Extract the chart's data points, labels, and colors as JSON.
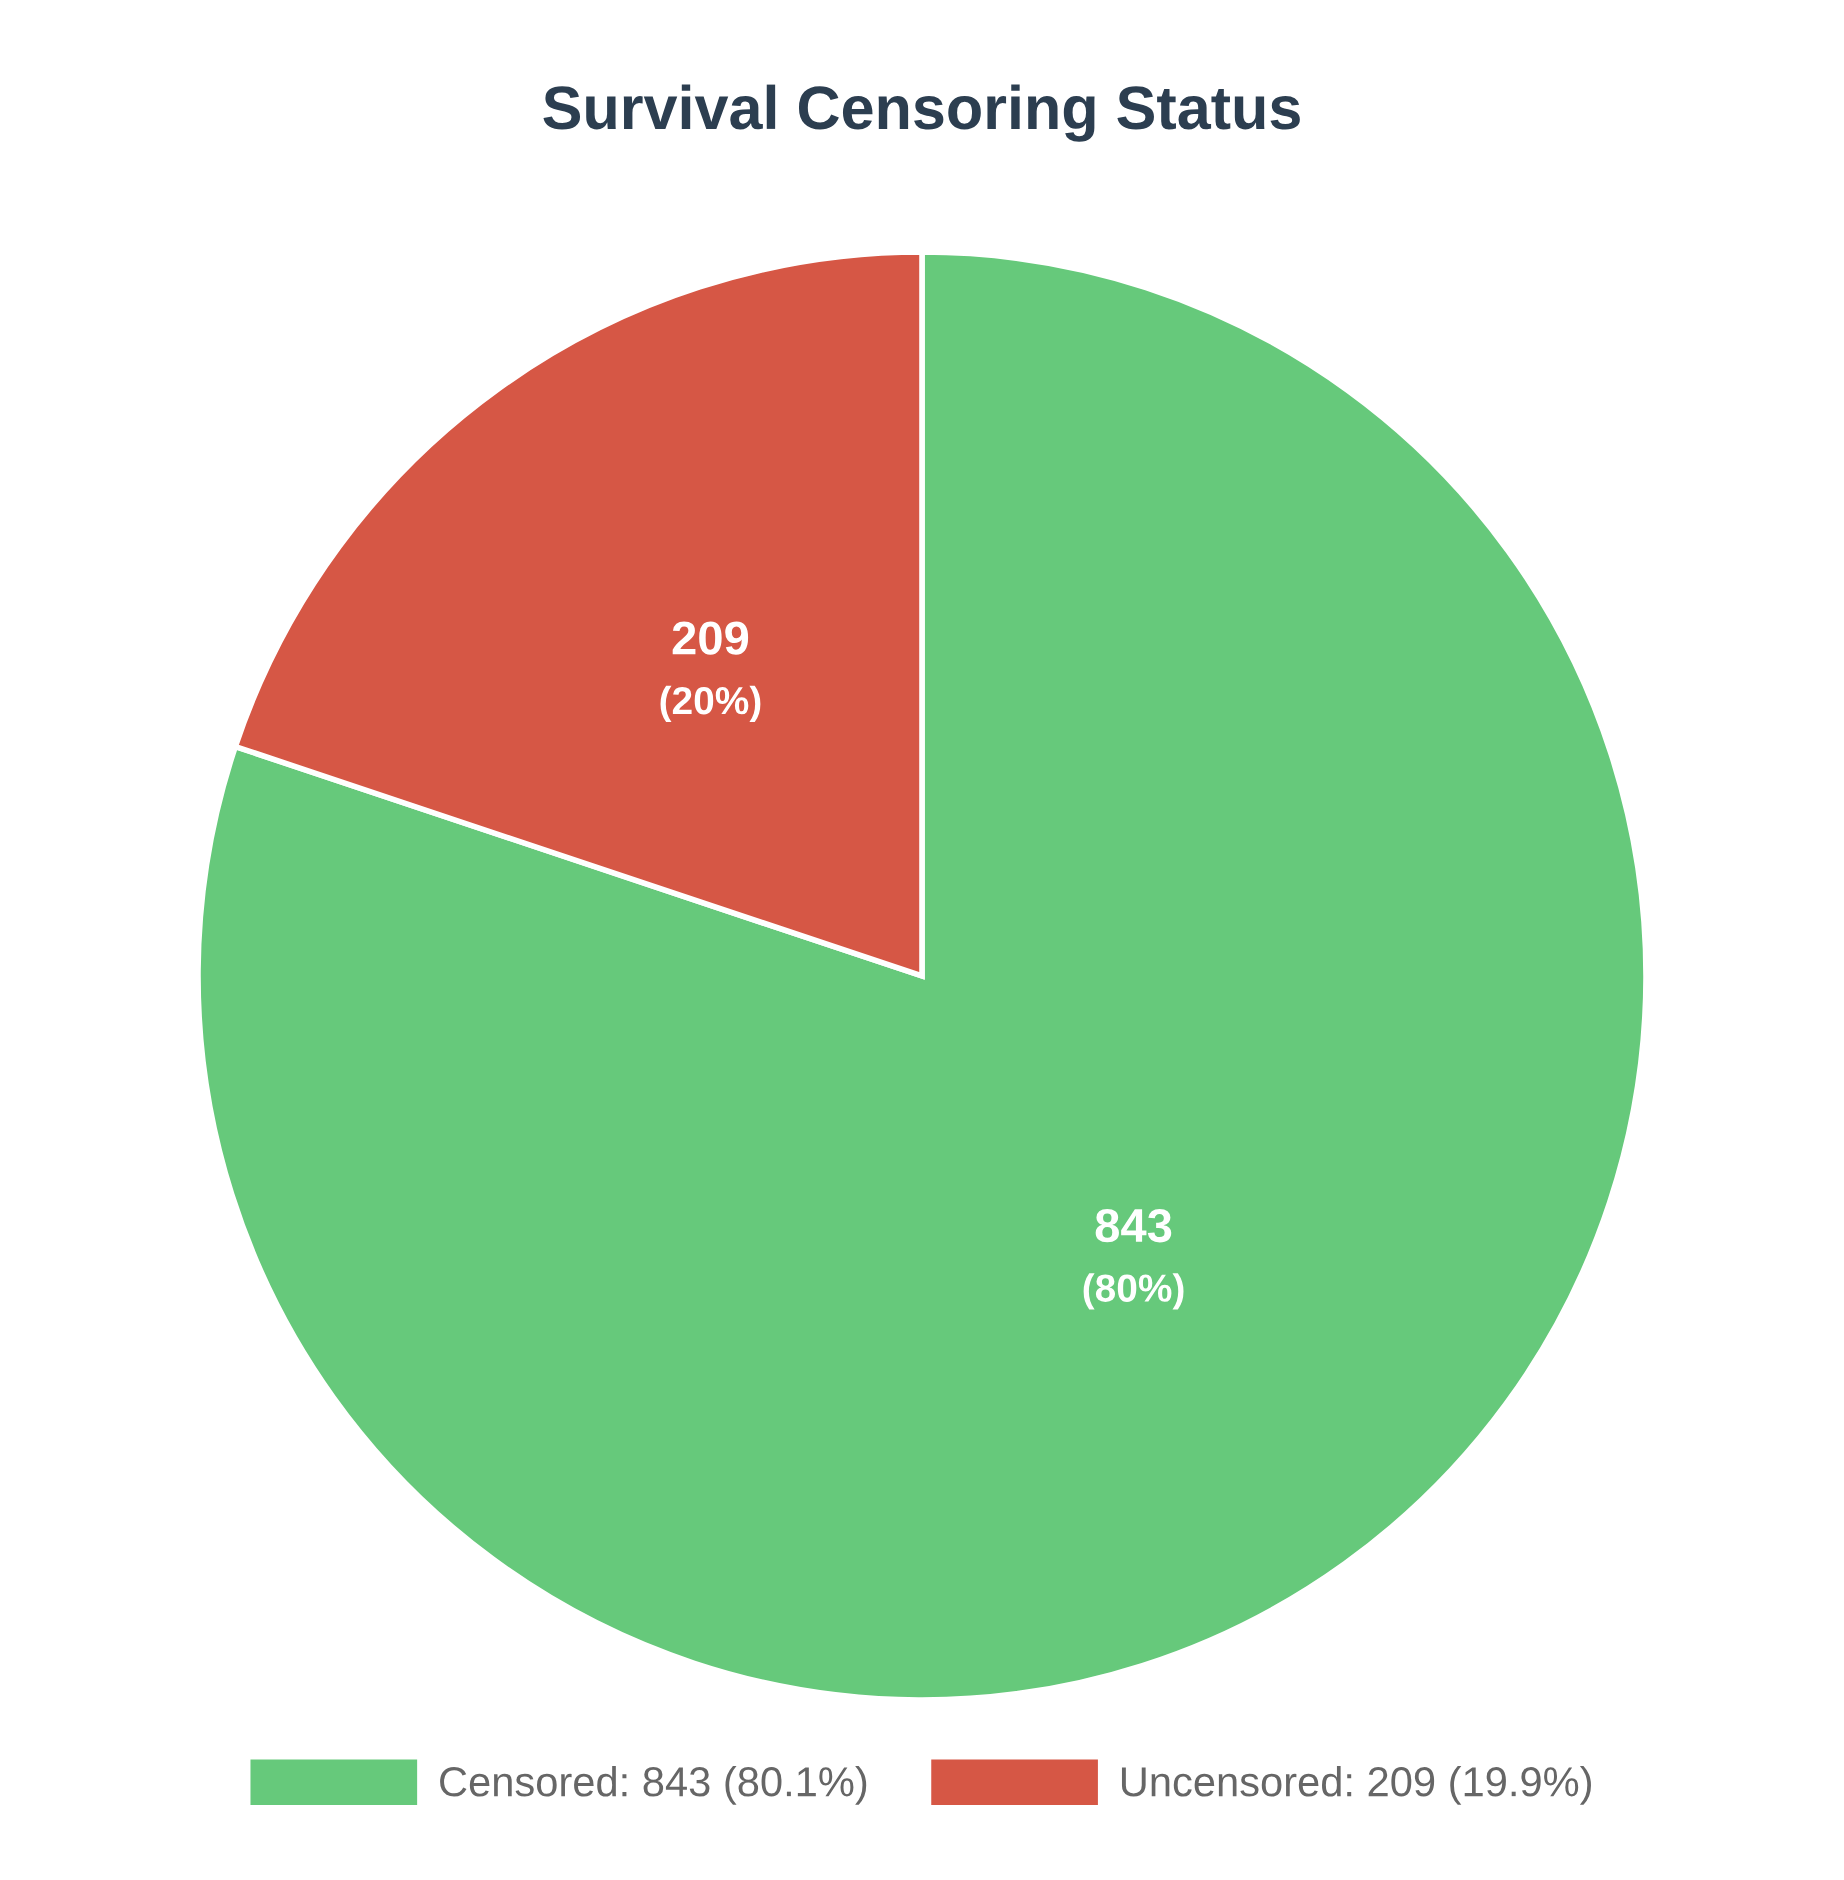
{
  "chart_data": {
    "type": "pie",
    "title": "Survival Censoring Status",
    "categories": [
      "Censored: 843 (80.1%)",
      "Uncensored: 209 (19.9%)"
    ],
    "values": [
      843,
      209
    ],
    "colors": [
      "#66c97b",
      "#d65745"
    ],
    "value_labels": [
      "843\n(80%)",
      "209\n(20%)"
    ],
    "legend": "bottom"
  }
}
